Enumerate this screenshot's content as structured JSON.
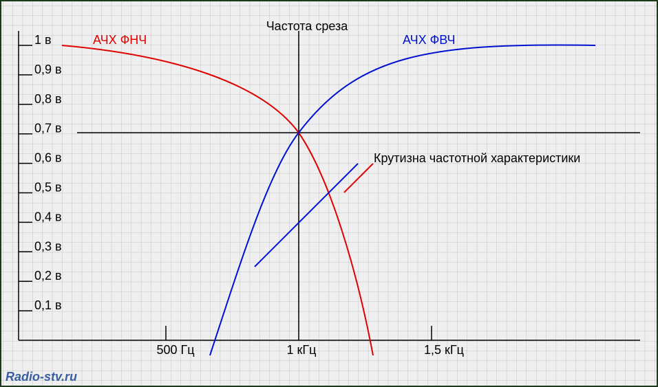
{
  "title": "Частота среза",
  "curves": {
    "lowpass": "АЧХ ФНЧ",
    "highpass": "АЧХ ФВЧ"
  },
  "annotation": "Крутизна частотной характеристики",
  "y_labels": [
    "1 в",
    "0,9 в",
    "0,8 в",
    "0,7 в",
    "0,6 в",
    "0,5 в",
    "0,4 в",
    "0,3 в",
    "0,2 в",
    "0,1 в"
  ],
  "x_labels": [
    "500 Гц",
    "1 кГц",
    "1,5 кГц"
  ],
  "watermark": "Radio-stv.ru"
}
